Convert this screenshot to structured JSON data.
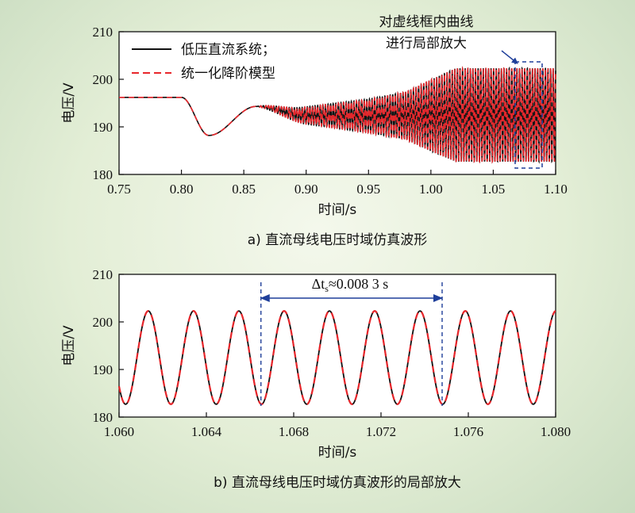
{
  "chart_data": [
    {
      "type": "line",
      "xlabel": "时间/s",
      "ylabel": "电压/V",
      "xlim": [
        0.75,
        1.1
      ],
      "ylim": [
        180,
        210
      ],
      "xticks": [
        "0.75",
        "0.80",
        "0.85",
        "0.90",
        "0.95",
        "1.00",
        "1.05",
        "1.10"
      ],
      "yticks": [
        "180",
        "190",
        "200",
        "210"
      ],
      "caption": "a) 直流母线电压时域仿真波形",
      "annotation": "对虚线框内曲线 进行局部放大",
      "annotation_lines": [
        "对虚线框内曲线",
        "进行局部放大"
      ],
      "grid": false,
      "legend_position": "top-left",
      "series": [
        {
          "name": "低压直流系统；",
          "color": "#111111",
          "style": "solid",
          "points": [
            {
              "x": 0.75,
              "y": 196.2
            },
            {
              "x": 0.8,
              "y": 196.2
            },
            {
              "x": 0.822,
              "y": 188.2
            },
            {
              "x": 0.86,
              "y": 194.3
            },
            {
              "x": 0.88,
              "y": 193.2
            },
            {
              "x": 0.9,
              "y": 192.4
            },
            {
              "x": 0.95,
              "y": 192.3
            },
            {
              "x": 1.0,
              "y": 192.4
            },
            {
              "x": 1.02,
              "y": 192.5
            },
            {
              "x": 1.1,
              "y": 192.5
            }
          ],
          "oscillation_envelope": [
            {
              "x": 0.86,
              "amplitude": 0.0
            },
            {
              "x": 0.9,
              "amplitude": 1.8
            },
            {
              "x": 0.95,
              "amplitude": 3.5
            },
            {
              "x": 0.98,
              "amplitude": 5.0
            },
            {
              "x": 1.0,
              "amplitude": 7.5
            },
            {
              "x": 1.02,
              "amplitude": 9.8
            },
            {
              "x": 1.1,
              "amplitude": 9.8
            }
          ]
        },
        {
          "name": "统一化降阶模型",
          "color": "#e8262b",
          "style": "dashed"
        }
      ]
    },
    {
      "type": "line",
      "xlabel": "时间/s",
      "ylabel": "电压/V",
      "xlim": [
        1.06,
        1.08
      ],
      "ylim": [
        180,
        210
      ],
      "xticks": [
        "1.060",
        "1.064",
        "1.068",
        "1.072",
        "1.076",
        "1.080"
      ],
      "yticks": [
        "180",
        "190",
        "200",
        "210"
      ],
      "caption": "b) 直流母线电压时域仿真波形的局部放大",
      "grid": false,
      "period_annotation": {
        "label": "Δt",
        "subscript": "s",
        "text": "≈0.008 3 s",
        "x1": 1.0665,
        "x2": 1.0748
      },
      "series": [
        {
          "name": "低压直流系统；",
          "color": "#111111",
          "style": "solid",
          "mean": 192.5,
          "amplitude": 9.8,
          "period": 0.002075,
          "first_trough": 1.0603
        },
        {
          "name": "统一化降阶模型",
          "color": "#e8262b",
          "style": "dashed",
          "mean": 192.5,
          "amplitude": 9.8,
          "period": 0.002075,
          "first_trough": 1.0603
        }
      ]
    }
  ]
}
